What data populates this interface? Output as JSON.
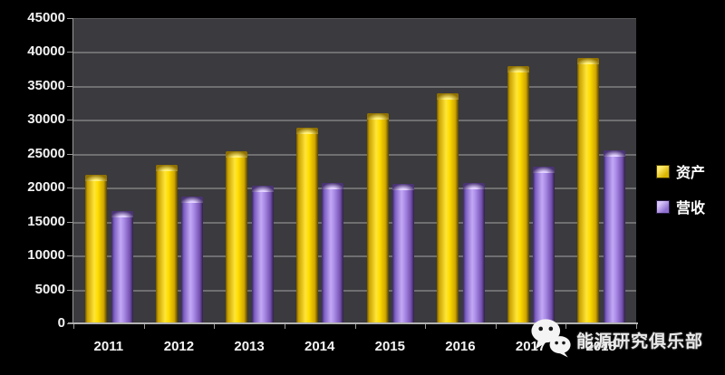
{
  "chart_data": {
    "type": "bar",
    "title": "",
    "xlabel": "",
    "ylabel": "",
    "categories": [
      "2011",
      "2012",
      "2013",
      "2014",
      "2015",
      "2016",
      "2017",
      "2018"
    ],
    "series": [
      {
        "name": "资产",
        "color": "#FFD700",
        "values": [
          22000,
          23500,
          25500,
          29000,
          31100,
          34000,
          38100,
          39300
        ]
      },
      {
        "name": "营收",
        "color": "#9B7BD8",
        "values": [
          16700,
          18800,
          20400,
          20900,
          20700,
          20900,
          23200,
          25600
        ]
      }
    ],
    "ylim": [
      0,
      45000
    ],
    "ytick_interval": 5000,
    "yticks": [
      "45000",
      "40000",
      "35000",
      "30000",
      "25000",
      "20000",
      "15000",
      "10000",
      "5000",
      "0"
    ],
    "grid": "horizontal",
    "legend_position": "right",
    "plot_background": "#3B3A3E",
    "page_background": "#000000",
    "gridline_color": "#6F6F71"
  },
  "watermark": {
    "icon": "wechat-icon",
    "text": "能源研究俱乐部"
  }
}
